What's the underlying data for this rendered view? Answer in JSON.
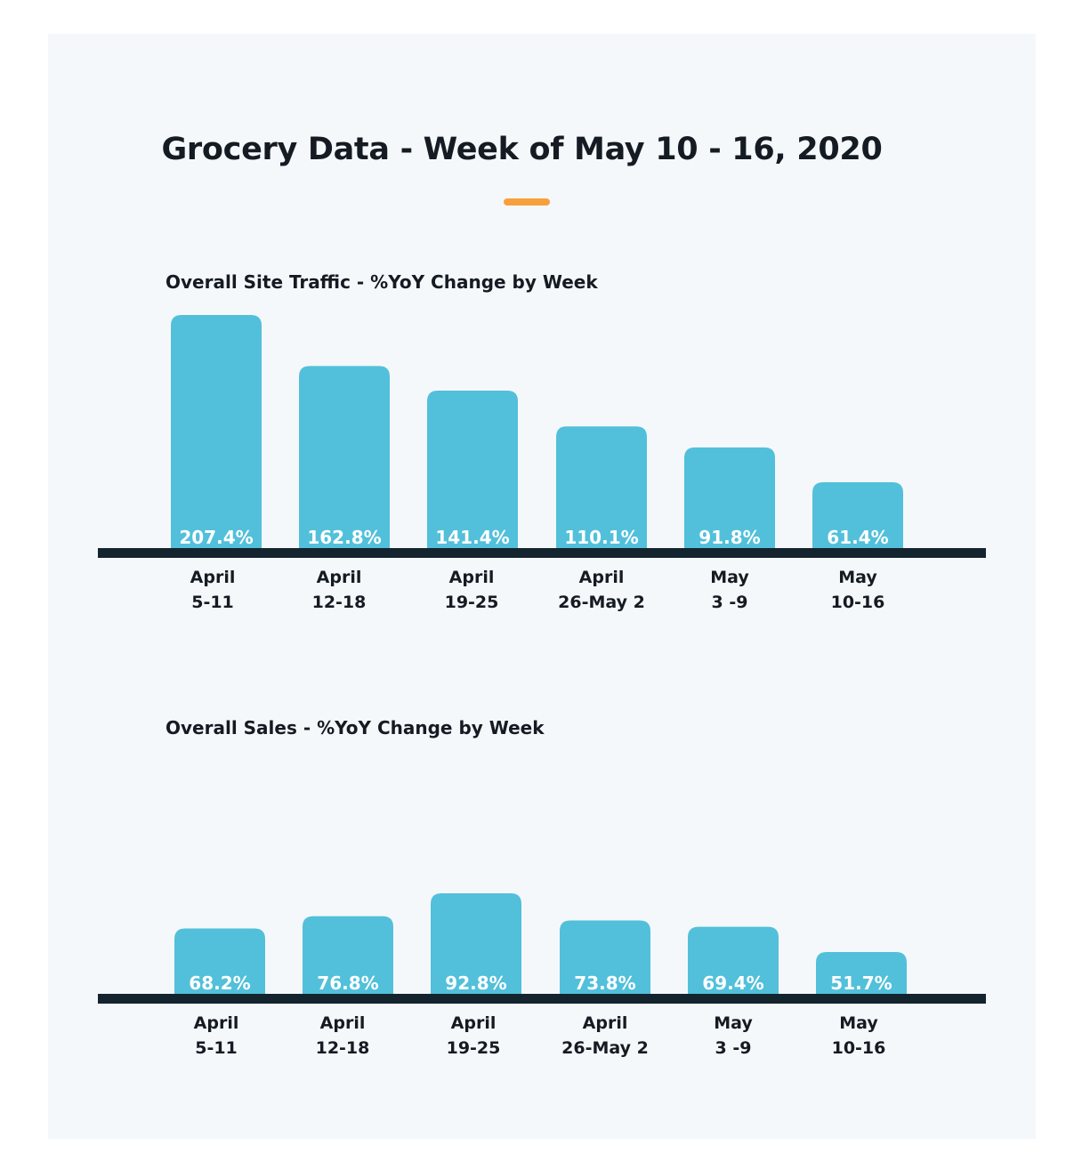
{
  "header": {
    "title": "Grocery Data - Week of May 10 - 16, 2020",
    "accent_color": "#f7a03c"
  },
  "chart_data": [
    {
      "type": "bar",
      "title": "Overall Site Traffic - %YoY Change by Week",
      "categories": [
        [
          "April",
          "5-11"
        ],
        [
          "April",
          "12-18"
        ],
        [
          "April",
          "19-25"
        ],
        [
          "April",
          "26-May 2"
        ],
        [
          "May",
          "3 -9"
        ],
        [
          "May",
          "10-16"
        ]
      ],
      "values": [
        207.4,
        162.8,
        141.4,
        110.1,
        91.8,
        61.4
      ],
      "labels": [
        "207.4%",
        "162.8%",
        "141.4%",
        "110.1%",
        "91.8%",
        "61.4%"
      ],
      "bar_color": "#52c0da",
      "axis_color": "#14242e",
      "grid": false
    },
    {
      "type": "bar",
      "title": "Overall Sales - %YoY Change by Week",
      "categories": [
        [
          "April",
          "5-11"
        ],
        [
          "April",
          "12-18"
        ],
        [
          "April",
          "19-25"
        ],
        [
          "April",
          "26-May 2"
        ],
        [
          "May",
          "3 -9"
        ],
        [
          "May",
          "10-16"
        ]
      ],
      "values": [
        68.2,
        76.8,
        92.8,
        73.8,
        69.4,
        51.7
      ],
      "labels": [
        "68.2%",
        "76.8%",
        "92.8%",
        "73.8%",
        "69.4%",
        "51.7%"
      ],
      "bar_color": "#52c0da",
      "axis_color": "#14242e",
      "grid": false
    }
  ]
}
